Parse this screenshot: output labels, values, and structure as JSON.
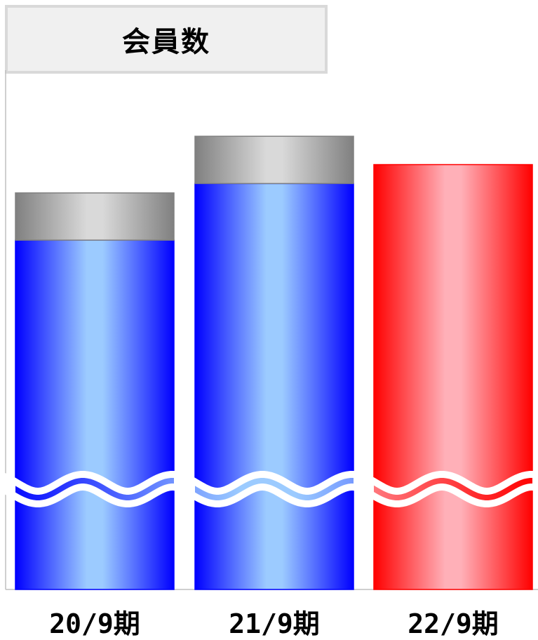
{
  "chart_data": {
    "type": "bar",
    "title": "会員数",
    "categories": [
      "20/9期",
      "21/9期",
      "22/9期"
    ],
    "series": [
      {
        "values": [
          74,
          86,
          0
        ],
        "colors": [
          "#0000ff",
          "#9ccbff"
        ]
      },
      {
        "values": [
          10,
          10,
          0
        ],
        "colors": [
          "#808080",
          "#d9d9d9"
        ]
      },
      {
        "values": [
          0,
          0,
          90
        ],
        "colors": [
          "#ff0000",
          "#ffb0b8"
        ]
      }
    ],
    "ylim": [
      0,
      110
    ],
    "axis_break": true,
    "grid": false,
    "legend": "none"
  }
}
